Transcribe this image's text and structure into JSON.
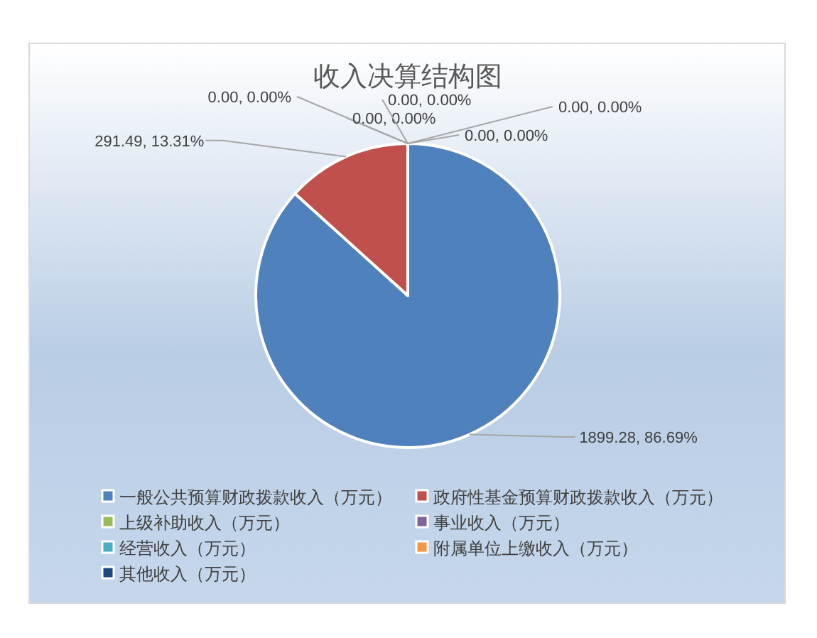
{
  "chart_data": {
    "type": "pie",
    "title": "收入决算结构图",
    "categories": [
      "一般公共预算财政拨款收入（万元）",
      "政府性基金预算财政拨款收入（万元）",
      "上级补助收入（万元）",
      "事业收入（万元）",
      "经营收入（万元）",
      "附属单位上缴收入（万元）",
      "其他收入（万元）"
    ],
    "values": [
      1899.28,
      291.49,
      0,
      0,
      0,
      0,
      0
    ],
    "colors": [
      "#4f81bd",
      "#c0504d",
      "#9bbb59",
      "#8064a2",
      "#4bacc6",
      "#f79646",
      "#1f497d"
    ],
    "value_labels": [
      "1899.28, 86.69%",
      "291.49, 13.31%",
      "0.00, 0.00%",
      "0.00, 0.00%",
      "0.00, 0.00%",
      "0.00, 0.00%",
      "0.00, 0.00%"
    ],
    "legend": "bottom"
  }
}
